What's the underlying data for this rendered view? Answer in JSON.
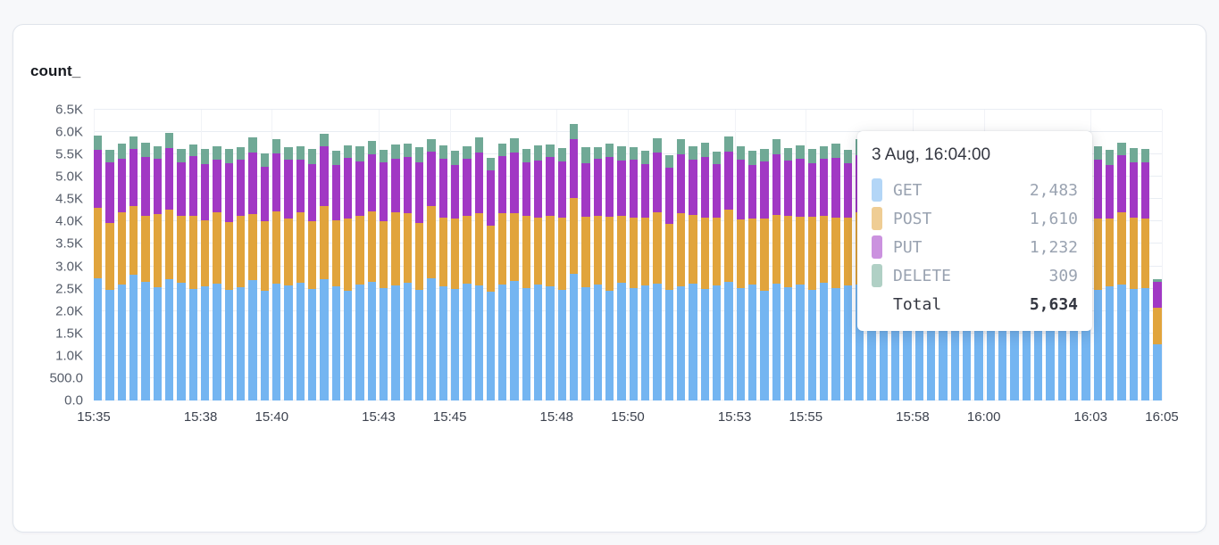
{
  "panel": {
    "title": "count_"
  },
  "colors": {
    "page_background": "#f7f8fa",
    "panel_background": "#ffffff",
    "gridline": "#e9edf3"
  },
  "chart_data": {
    "type": "bar",
    "stacked": true,
    "title": "count_",
    "xlabel": "",
    "ylabel": "",
    "legend": "none",
    "grid": true,
    "ylim": [
      0,
      6500
    ],
    "x_span_seconds": 1800,
    "x_interval_seconds": 20,
    "x_start_label": "15:35",
    "y_ticks": [
      {
        "label": "0.0",
        "value": 0
      },
      {
        "label": "500.0",
        "value": 500
      },
      {
        "label": "1.0K",
        "value": 1000
      },
      {
        "label": "1.5K",
        "value": 1500
      },
      {
        "label": "2.0K",
        "value": 2000
      },
      {
        "label": "2.5K",
        "value": 2500
      },
      {
        "label": "3.0K",
        "value": 3000
      },
      {
        "label": "3.5K",
        "value": 3500
      },
      {
        "label": "4.0K",
        "value": 4000
      },
      {
        "label": "4.5K",
        "value": 4500
      },
      {
        "label": "5.0K",
        "value": 5000
      },
      {
        "label": "5.5K",
        "value": 5500
      },
      {
        "label": "6.0K",
        "value": 6000
      },
      {
        "label": "6.5K",
        "value": 6500
      }
    ],
    "x_ticks": [
      {
        "label": "15:35",
        "t": 0
      },
      {
        "label": "15:38",
        "t": 180
      },
      {
        "label": "15:40",
        "t": 300
      },
      {
        "label": "15:43",
        "t": 480
      },
      {
        "label": "15:45",
        "t": 600
      },
      {
        "label": "15:48",
        "t": 780
      },
      {
        "label": "15:50",
        "t": 900
      },
      {
        "label": "15:53",
        "t": 1080
      },
      {
        "label": "15:55",
        "t": 1200
      },
      {
        "label": "15:58",
        "t": 1380
      },
      {
        "label": "16:00",
        "t": 1500
      },
      {
        "label": "16:03",
        "t": 1680
      },
      {
        "label": "16:05",
        "t": 1800
      }
    ],
    "series": [
      {
        "name": "GET",
        "color": "#74b5f1",
        "values": [
          2733,
          2481,
          2590,
          2812,
          2655,
          2540,
          2705,
          2623,
          2498,
          2557,
          2610,
          2472,
          2534,
          2688,
          2451,
          2603,
          2566,
          2629,
          2487,
          2712,
          2545,
          2460,
          2598,
          2651,
          2509,
          2574,
          2636,
          2482,
          2725,
          2553,
          2491,
          2618,
          2563,
          2440,
          2584,
          2667,
          2515,
          2602,
          2558,
          2476,
          2840,
          2531,
          2587,
          2449,
          2640,
          2513,
          2575,
          2608,
          2467,
          2552,
          2621,
          2495,
          2578,
          2659,
          2506,
          2583,
          2448,
          2617,
          2540,
          2592,
          2470,
          2635,
          2518,
          2564,
          2601,
          2483,
          2556,
          2612,
          2459,
          2588,
          2527,
          2649,
          2502,
          2571,
          2614,
          2465,
          2599,
          2536,
          2582,
          2450,
          2628,
          2497,
          2561,
          2605,
          2478,
          2543,
          2589,
          2483,
          2520,
          1260
        ]
      },
      {
        "name": "POST",
        "color": "#e1a43c",
        "values": [
          1582,
          1493,
          1617,
          1540,
          1478,
          1621,
          1555,
          1502,
          1638,
          1470,
          1589,
          1524,
          1603,
          1487,
          1560,
          1632,
          1495,
          1571,
          1516,
          1644,
          1483,
          1602,
          1537,
          1575,
          1498,
          1626,
          1551,
          1489,
          1614,
          1542,
          1579,
          1506,
          1633,
          1477,
          1595,
          1528,
          1607,
          1484,
          1563,
          1621,
          1680,
          1586,
          1531,
          1650,
          1492,
          1573,
          1518,
          1604,
          1479,
          1641,
          1527,
          1588,
          1503,
          1616,
          1549,
          1481,
          1629,
          1536,
          1594,
          1512,
          1647,
          1488,
          1570,
          1525,
          1601,
          1547,
          1493,
          1622,
          1558,
          1506,
          1635,
          1480,
          1597,
          1533,
          1610,
          1491,
          1566,
          1520,
          1643,
          1498,
          1584,
          1539,
          1608,
          1476,
          1592,
          1530,
          1615,
          1610,
          1545,
          810
        ]
      },
      {
        "name": "PUT",
        "color": "#a138c4",
        "values": [
          1287,
          1342,
          1198,
          1265,
          1311,
          1240,
          1376,
          1203,
          1328,
          1259,
          1194,
          1307,
          1246,
          1361,
          1215,
          1290,
          1333,
          1184,
          1272,
          1319,
          1238,
          1356,
          1207,
          1284,
          1325,
          1196,
          1263,
          1348,
          1229,
          1301,
          1187,
          1276,
          1339,
          1218,
          1294,
          1352,
          1201,
          1268,
          1315,
          1243,
          1320,
          1192,
          1281,
          1336,
          1224,
          1297,
          1189,
          1330,
          1254,
          1308,
          1236,
          1363,
          1210,
          1285,
          1322,
          1197,
          1270,
          1345,
          1227,
          1302,
          1183,
          1278,
          1341,
          1214,
          1291,
          1358,
          1205,
          1266,
          1317,
          1248,
          1374,
          1190,
          1283,
          1334,
          1221,
          1299,
          1186,
          1327,
          1252,
          1310,
          1232,
          1366,
          1208,
          1287,
          1320,
          1199,
          1274,
          1232,
          1257,
          580
        ]
      },
      {
        "name": "DELETE",
        "color": "#70a996",
        "values": [
          312,
          286,
          334,
          295,
          321,
          278,
          348,
          302,
          269,
          330,
          291,
          315,
          283,
          342,
          297,
          326,
          274,
          308,
          339,
          288,
          317,
          281,
          345,
          299,
          264,
          323,
          293,
          336,
          277,
          311,
          329,
          285,
          352,
          296,
          268,
          318,
          304,
          341,
          279,
          313,
          340,
          347,
          272,
          309,
          332,
          287,
          298,
          325,
          280,
          344,
          294,
          316,
          270,
          337,
          301,
          322,
          276,
          349,
          289,
          307,
          331,
          284,
          314,
          295,
          343,
          271,
          319,
          303,
          328,
          282,
          350,
          292,
          310,
          267,
          335,
          299,
          324,
          278,
          346,
          288,
          305,
          316,
          273,
          338,
          300,
          327,
          281,
          309,
          296,
          60
        ]
      }
    ]
  },
  "tooltip": {
    "header": "3 Aug, 16:04:00",
    "rows": [
      {
        "label": "GET",
        "value": "2,483",
        "color": "#74b5f1"
      },
      {
        "label": "POST",
        "value": "1,610",
        "color": "#e1a43c"
      },
      {
        "label": "PUT",
        "value": "1,232",
        "color": "#a138c4"
      },
      {
        "label": "DELETE",
        "value": "309",
        "color": "#70a996"
      }
    ],
    "total_label": "Total",
    "total_value": "5,634"
  }
}
